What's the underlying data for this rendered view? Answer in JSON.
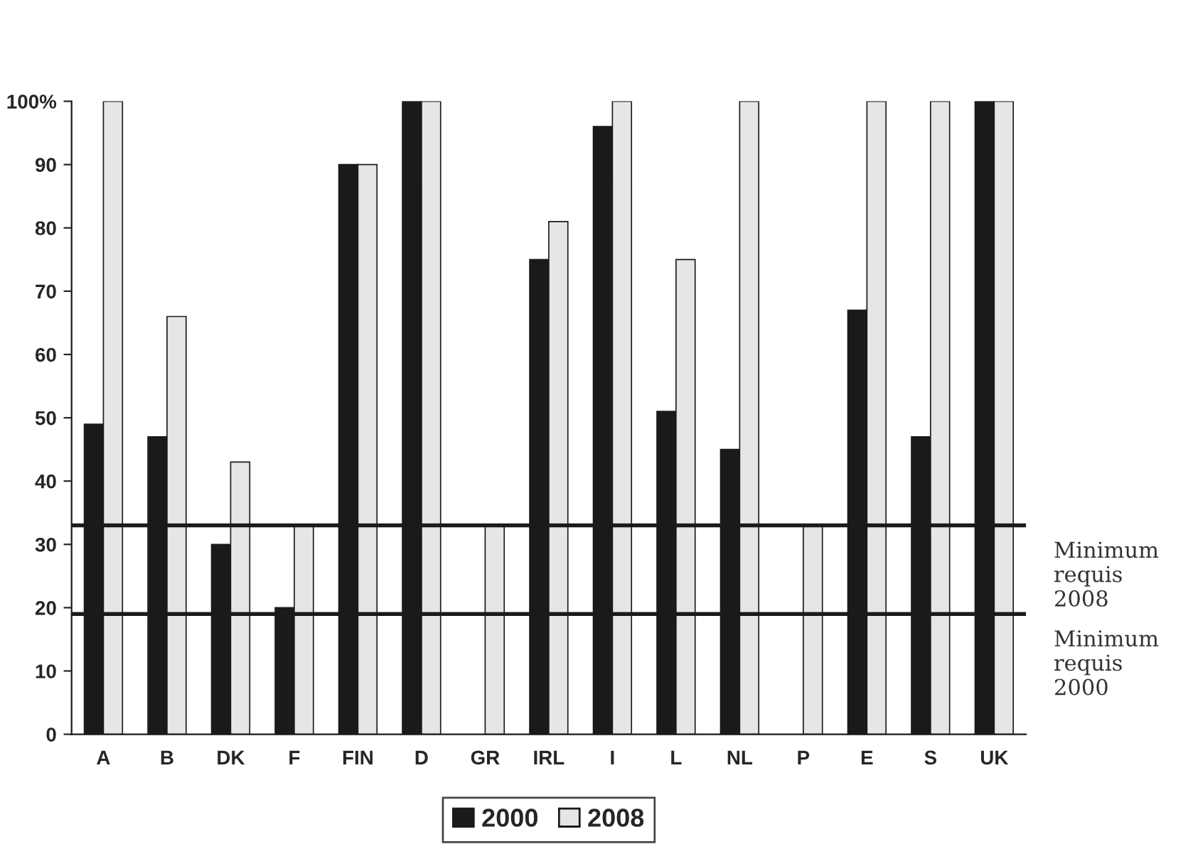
{
  "chart_data": {
    "type": "bar",
    "categories": [
      "A",
      "B",
      "DK",
      "F",
      "FIN",
      "D",
      "GR",
      "IRL",
      "I",
      "L",
      "NL",
      "P",
      "E",
      "S",
      "UK"
    ],
    "series": [
      {
        "name": "2000",
        "color": "#1a1a1a",
        "values": [
          49,
          47,
          30,
          20,
          90,
          100,
          null,
          75,
          96,
          51,
          45,
          null,
          67,
          47,
          100
        ]
      },
      {
        "name": "2008",
        "color": "#e6e6e6",
        "values": [
          100,
          66,
          43,
          33,
          90,
          100,
          33,
          81,
          100,
          75,
          100,
          33,
          100,
          100,
          100
        ]
      }
    ],
    "ylim": [
      0,
      100
    ],
    "yticks": [
      0,
      10,
      20,
      30,
      40,
      50,
      60,
      70,
      80,
      90,
      {
        "value": 100,
        "label": "100%"
      }
    ],
    "ref_lines": [
      {
        "axis": "y",
        "value": 33,
        "label": "Minimum\nrequis\n2008",
        "color": "#1a1a1a"
      },
      {
        "axis": "y",
        "value": 19,
        "label": "Minimum\nrequis\n2000",
        "color": "#1a1a1a"
      }
    ],
    "grid": false,
    "legend": "bottom"
  }
}
